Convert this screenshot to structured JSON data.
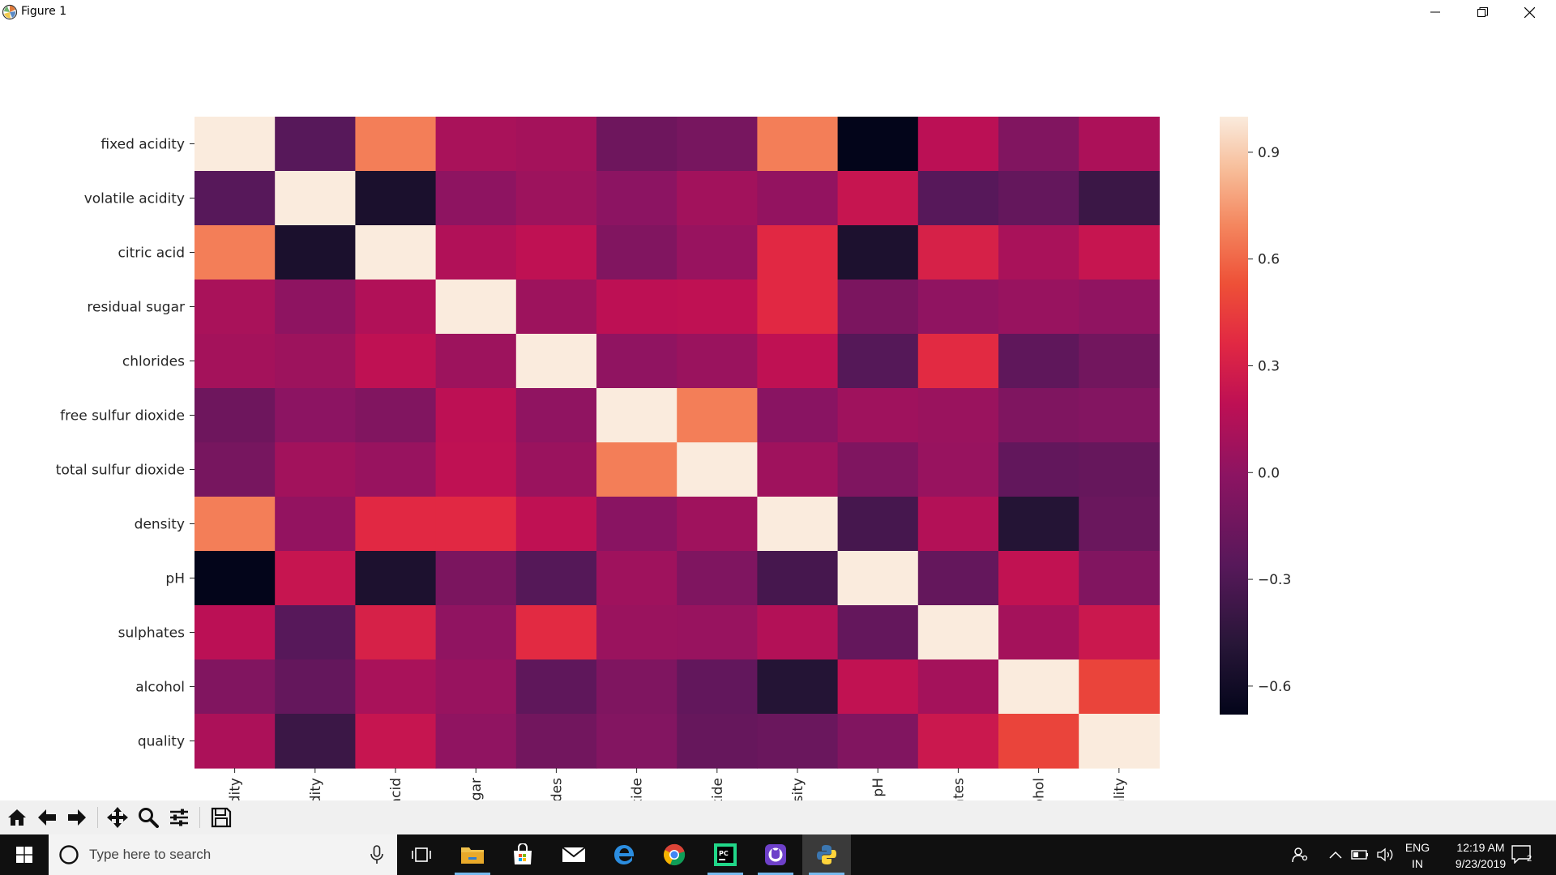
{
  "window": {
    "title": "Figure 1",
    "controls": [
      "minimize-icon",
      "restore-icon",
      "close-icon"
    ]
  },
  "chart_data": {
    "type": "heatmap",
    "title": "",
    "row_labels": [
      "fixed acidity",
      "volatile acidity",
      "citric acid",
      "residual sugar",
      "chlorides",
      "free sulfur dioxide",
      "total sulfur dioxide",
      "density",
      "pH",
      "sulphates",
      "alcohol",
      "quality"
    ],
    "col_labels": [
      "xed acidity",
      "tile acidity",
      "citric acid",
      "dual sugar",
      "chlorides",
      "fur dioxide",
      "fur dioxide",
      "density",
      "pH",
      "sulphates",
      "alcohol",
      "quality"
    ],
    "values": [
      [
        1.0,
        -0.26,
        0.67,
        0.11,
        0.09,
        -0.15,
        -0.11,
        0.67,
        -0.68,
        0.18,
        -0.06,
        0.12
      ],
      [
        -0.26,
        1.0,
        -0.55,
        0.0,
        0.06,
        -0.01,
        0.08,
        0.02,
        0.23,
        -0.26,
        -0.2,
        -0.39
      ],
      [
        0.67,
        -0.55,
        1.0,
        0.14,
        0.2,
        -0.06,
        0.04,
        0.36,
        -0.54,
        0.31,
        0.11,
        0.23
      ],
      [
        0.11,
        0.0,
        0.14,
        1.0,
        0.06,
        0.19,
        0.2,
        0.36,
        -0.09,
        0.01,
        0.04,
        0.01
      ],
      [
        0.09,
        0.06,
        0.2,
        0.06,
        1.0,
        0.01,
        0.05,
        0.2,
        -0.27,
        0.37,
        -0.22,
        -0.13
      ],
      [
        -0.15,
        -0.01,
        -0.06,
        0.19,
        0.01,
        1.0,
        0.67,
        -0.02,
        0.07,
        0.05,
        -0.07,
        -0.05
      ],
      [
        -0.11,
        0.08,
        0.04,
        0.2,
        0.05,
        0.67,
        1.0,
        0.07,
        -0.07,
        0.04,
        -0.21,
        -0.19
      ],
      [
        0.67,
        0.02,
        0.36,
        0.36,
        0.2,
        -0.02,
        0.07,
        1.0,
        -0.34,
        0.15,
        -0.5,
        -0.17
      ],
      [
        -0.68,
        0.23,
        -0.54,
        -0.09,
        -0.27,
        0.07,
        -0.07,
        -0.34,
        1.0,
        -0.2,
        0.21,
        -0.06
      ],
      [
        0.18,
        -0.26,
        0.31,
        0.01,
        0.37,
        0.05,
        0.04,
        0.15,
        -0.2,
        1.0,
        0.09,
        0.25
      ],
      [
        -0.06,
        -0.2,
        0.11,
        0.04,
        -0.22,
        -0.07,
        -0.21,
        -0.5,
        0.21,
        0.09,
        1.0,
        0.48
      ],
      [
        0.12,
        -0.39,
        0.23,
        0.01,
        -0.13,
        -0.05,
        -0.19,
        -0.17,
        -0.06,
        0.25,
        0.48,
        1.0
      ]
    ],
    "colorbar": {
      "range": [
        -0.68,
        1.0
      ],
      "ticks": [
        0.9,
        0.6,
        0.3,
        0.0,
        -0.3,
        -0.6
      ],
      "tick_labels": [
        "0.9",
        "0.6",
        "0.3",
        "0.0",
        "−0.3",
        "−0.6"
      ]
    },
    "colormap": "rocket",
    "grid": false
  },
  "toolbar": {
    "buttons": [
      "home-icon",
      "back-icon",
      "forward-icon",
      "pan-icon",
      "zoom-icon",
      "configure-subplots-icon",
      "save-icon"
    ]
  },
  "taskbar": {
    "search_placeholder": "Type here to search",
    "apps": [
      "task-view-icon",
      "file-explorer-icon",
      "store-icon",
      "mail-icon",
      "edge-icon",
      "chrome-icon",
      "pycharm-icon",
      "github-icon",
      "python-icon"
    ],
    "language_line1": "ENG",
    "language_line2": "IN",
    "time": "12:19 AM",
    "date": "9/23/2019",
    "notification_count": "2"
  },
  "colors": {
    "taskbar_bg": "#101010",
    "toolbar_bg": "#f0f0f0",
    "accent": "#76b9ed"
  }
}
